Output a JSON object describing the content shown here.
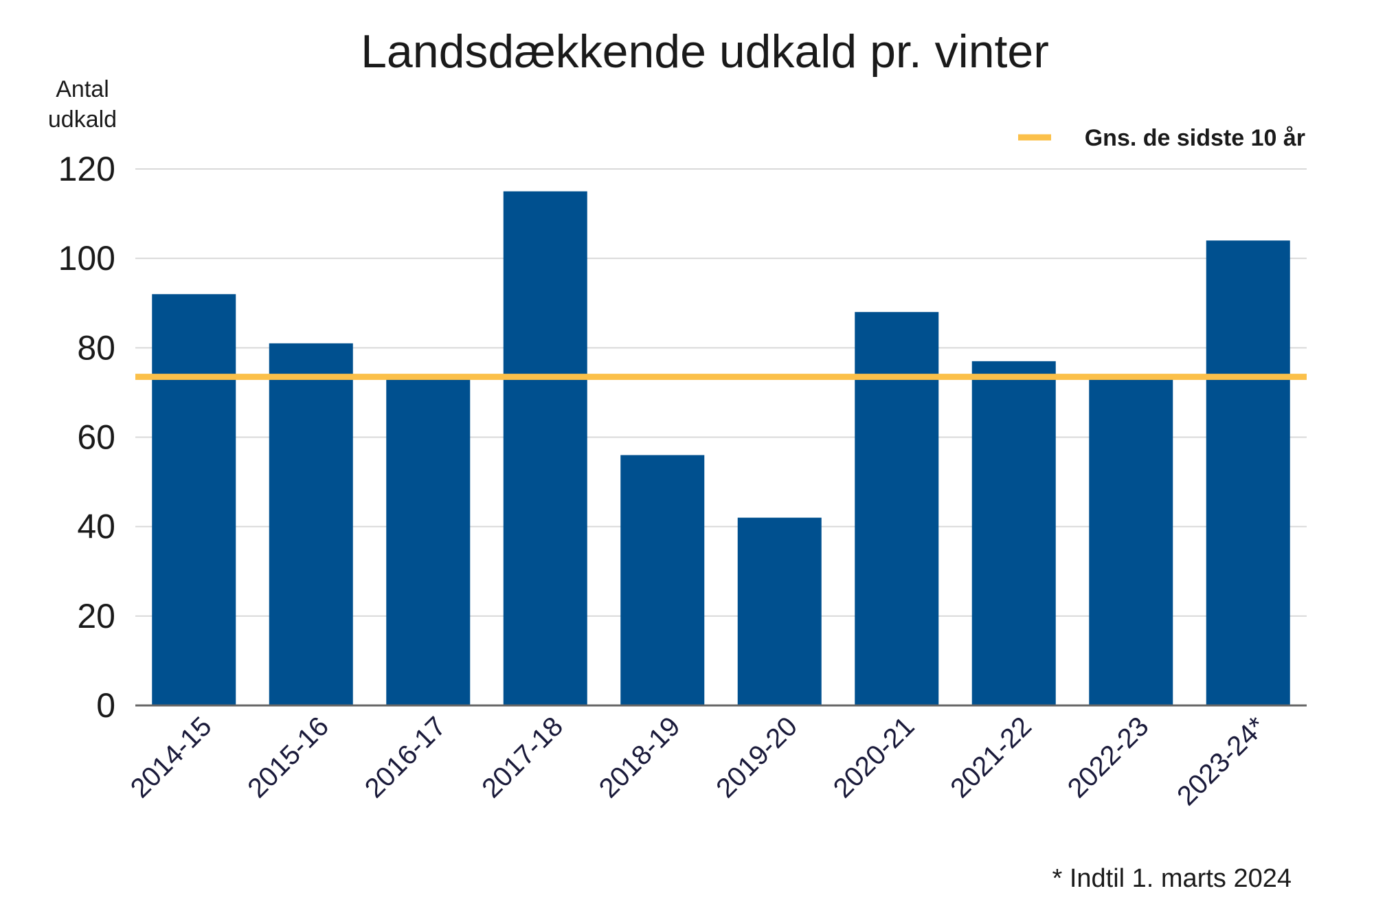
{
  "chart_data": {
    "type": "bar",
    "title": "Landsdækkende udkald pr. vinter",
    "ylabel": "Antal udkald",
    "ylabel_lines": [
      "Antal",
      "udkald"
    ],
    "xlabel": "",
    "categories": [
      "2014-15",
      "2015-16",
      "2016-17",
      "2017-18",
      "2018-19",
      "2019-20",
      "2020-21",
      "2021-22",
      "2022-23",
      "2023-24*"
    ],
    "values": [
      92,
      81,
      73,
      115,
      56,
      42,
      88,
      77,
      73,
      104
    ],
    "ylim": [
      0,
      120
    ],
    "yticks": [
      0,
      20,
      40,
      60,
      80,
      100,
      120
    ],
    "grid": true,
    "reference_line": {
      "label": "Gns. de sidste 10 år",
      "value": 73.5
    },
    "legend_position": "top-right",
    "footnote": "* Indtil 1. marts 2024",
    "colors": {
      "bar": "#00508f",
      "line": "#fbc04a",
      "grid": "#d9d9d9",
      "axis": "#666666"
    }
  }
}
